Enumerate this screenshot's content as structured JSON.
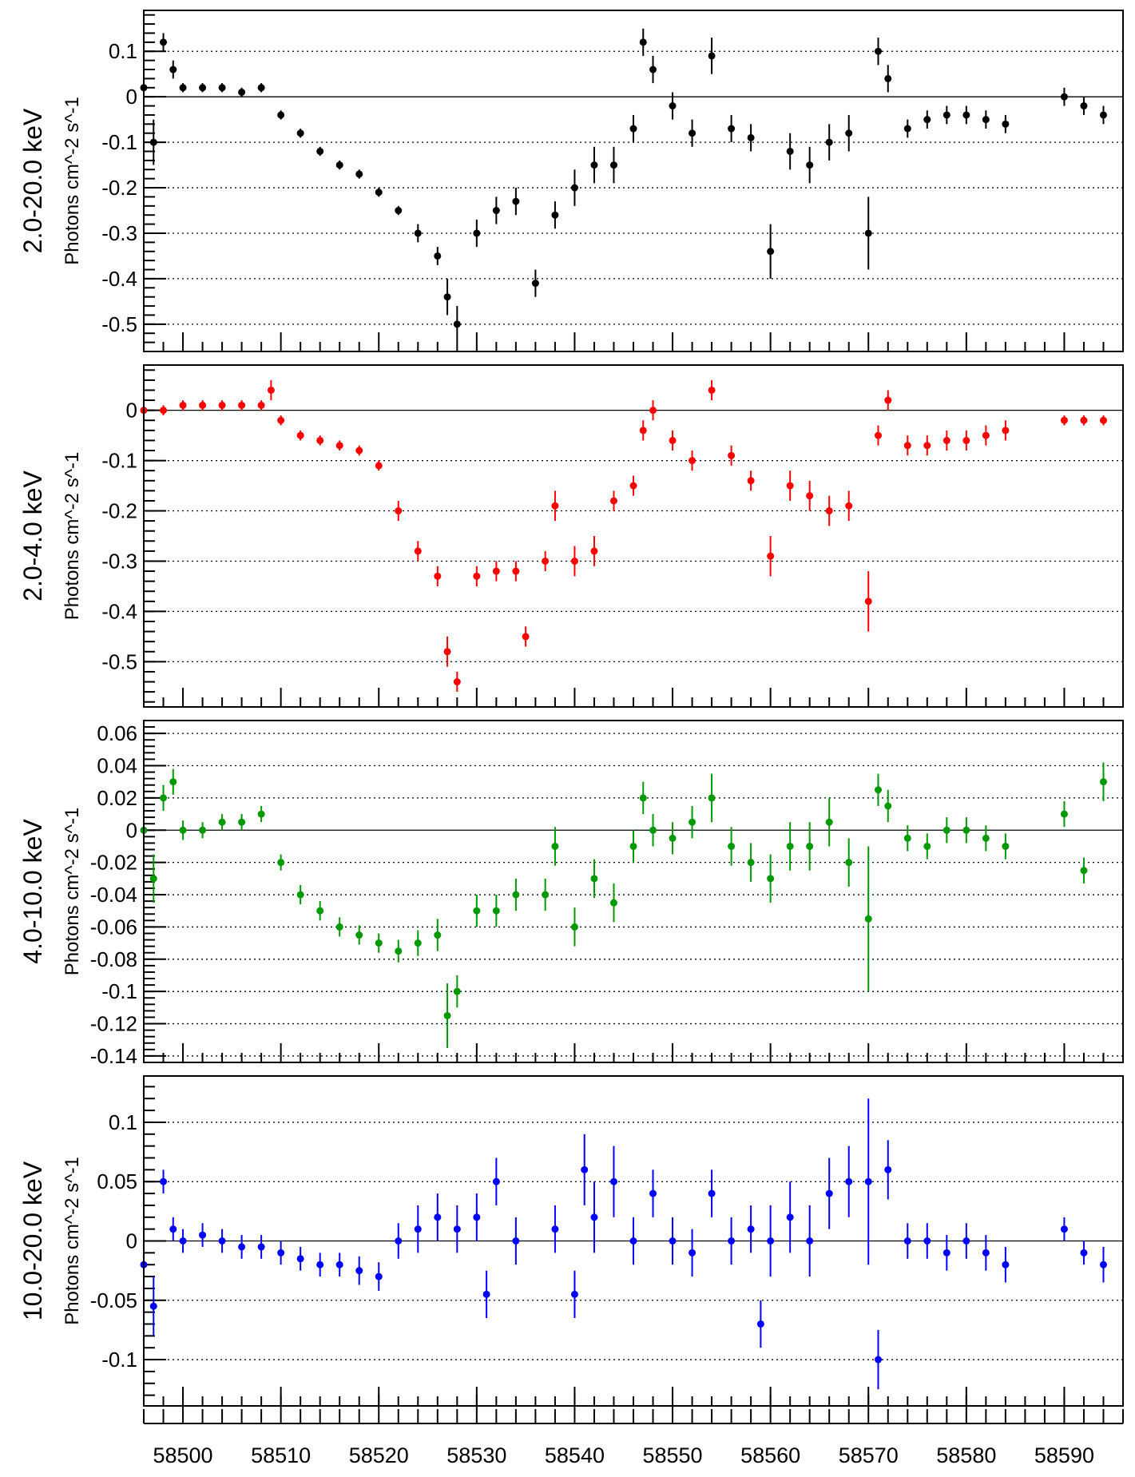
{
  "chart_data": [
    {
      "type": "scatter",
      "band_label": "2.0-20.0 keV",
      "ylabel": "Photons cm^-2 s^-1",
      "ylim": [
        -0.56,
        0.19
      ],
      "yticks": [
        0.1,
        0,
        -0.1,
        -0.2,
        -0.3,
        -0.4,
        -0.5
      ],
      "ytick_labels": [
        "0.1",
        "0",
        "-0.1",
        "-0.2",
        "-0.3",
        "-0.4",
        "-0.5"
      ],
      "color": "#000000",
      "grid": true,
      "x": [
        58496,
        58497,
        58498,
        58499,
        58500,
        58502,
        58504,
        58506,
        58508,
        58510,
        58512,
        58514,
        58516,
        58518,
        58520,
        58522,
        58524,
        58526,
        58527,
        58528,
        58530,
        58532,
        58534,
        58536,
        58538,
        58540,
        58542,
        58544,
        58546,
        58547,
        58548,
        58550,
        58552,
        58554,
        58556,
        58558,
        58560,
        58562,
        58564,
        58566,
        58568,
        58570,
        58571,
        58572,
        58574,
        58576,
        58578,
        58580,
        58582,
        58584,
        58590,
        58592,
        58594
      ],
      "y": [
        0.02,
        -0.1,
        0.12,
        0.06,
        0.02,
        0.02,
        0.02,
        0.01,
        0.02,
        -0.04,
        -0.08,
        -0.12,
        -0.15,
        -0.17,
        -0.21,
        -0.25,
        -0.3,
        -0.35,
        -0.44,
        -0.5,
        -0.3,
        -0.25,
        -0.23,
        -0.41,
        -0.26,
        -0.2,
        -0.15,
        -0.15,
        -0.07,
        0.12,
        0.06,
        -0.02,
        -0.08,
        0.09,
        -0.07,
        -0.09,
        -0.34,
        -0.12,
        -0.15,
        -0.1,
        -0.08,
        -0.3,
        0.1,
        0.04,
        -0.07,
        -0.05,
        -0.04,
        -0.04,
        -0.05,
        -0.06,
        0.0,
        -0.02,
        -0.04
      ],
      "yerr": [
        0.05,
        0.05,
        0.02,
        0.02,
        0.01,
        0.01,
        0.01,
        0.01,
        0.01,
        0.01,
        0.01,
        0.01,
        0.01,
        0.01,
        0.01,
        0.01,
        0.02,
        0.02,
        0.04,
        0.04,
        0.03,
        0.03,
        0.03,
        0.03,
        0.03,
        0.04,
        0.04,
        0.04,
        0.03,
        0.03,
        0.03,
        0.03,
        0.03,
        0.04,
        0.03,
        0.03,
        0.06,
        0.04,
        0.04,
        0.04,
        0.04,
        0.08,
        0.03,
        0.03,
        0.02,
        0.02,
        0.02,
        0.02,
        0.02,
        0.02,
        0.02,
        0.02,
        0.02
      ]
    },
    {
      "type": "scatter",
      "band_label": "2.0-4.0 keV",
      "ylabel": "Photons cm^-2 s^-1",
      "ylim": [
        -0.59,
        0.09
      ],
      "yticks": [
        0,
        -0.1,
        -0.2,
        -0.3,
        -0.4,
        -0.5
      ],
      "ytick_labels": [
        "0",
        "-0.1",
        "-0.2",
        "-0.3",
        "-0.4",
        "-0.5"
      ],
      "color": "#ff0000",
      "grid": true,
      "x": [
        58496,
        58498,
        58500,
        58502,
        58504,
        58506,
        58508,
        58509,
        58510,
        58512,
        58514,
        58516,
        58518,
        58520,
        58522,
        58524,
        58526,
        58527,
        58528,
        58530,
        58532,
        58534,
        58535,
        58537,
        58538,
        58540,
        58542,
        58544,
        58546,
        58547,
        58548,
        58550,
        58552,
        58554,
        58556,
        58558,
        58560,
        58562,
        58564,
        58566,
        58568,
        58570,
        58571,
        58572,
        58574,
        58576,
        58578,
        58580,
        58582,
        58584,
        58590,
        58592,
        58594
      ],
      "y": [
        0.0,
        0.0,
        0.01,
        0.01,
        0.01,
        0.01,
        0.01,
        0.04,
        -0.02,
        -0.05,
        -0.06,
        -0.07,
        -0.08,
        -0.11,
        -0.2,
        -0.28,
        -0.33,
        -0.48,
        -0.54,
        -0.33,
        -0.32,
        -0.32,
        -0.45,
        -0.3,
        -0.19,
        -0.3,
        -0.28,
        -0.18,
        -0.15,
        -0.04,
        0.0,
        -0.06,
        -0.1,
        0.04,
        -0.09,
        -0.14,
        -0.29,
        -0.15,
        -0.17,
        -0.2,
        -0.19,
        -0.38,
        -0.05,
        0.02,
        -0.07,
        -0.07,
        -0.06,
        -0.06,
        -0.05,
        -0.04,
        -0.02,
        -0.02,
        -0.02
      ],
      "yerr": [
        0.02,
        0.01,
        0.01,
        0.01,
        0.01,
        0.01,
        0.01,
        0.02,
        0.01,
        0.01,
        0.01,
        0.01,
        0.01,
        0.01,
        0.02,
        0.02,
        0.02,
        0.03,
        0.02,
        0.02,
        0.02,
        0.02,
        0.02,
        0.02,
        0.03,
        0.03,
        0.03,
        0.02,
        0.02,
        0.02,
        0.02,
        0.02,
        0.02,
        0.02,
        0.02,
        0.02,
        0.04,
        0.03,
        0.03,
        0.03,
        0.03,
        0.06,
        0.02,
        0.02,
        0.02,
        0.02,
        0.02,
        0.02,
        0.02,
        0.02,
        0.01,
        0.01,
        0.01
      ]
    },
    {
      "type": "scatter",
      "band_label": "4.0-10.0 keV",
      "ylabel": "Photons cm^-2 s^-1",
      "ylim": [
        -0.144,
        0.068
      ],
      "yticks": [
        0.06,
        0.04,
        0.02,
        0,
        -0.02,
        -0.04,
        -0.06,
        -0.08,
        -0.1,
        -0.12,
        -0.14
      ],
      "ytick_labels": [
        "0.06",
        "0.04",
        "0.02",
        "0",
        "-0.02",
        "-0.04",
        "-0.06",
        "-0.08",
        "-0.1",
        "-0.12",
        "-0.14"
      ],
      "color": "#009900",
      "grid": true,
      "x": [
        58496,
        58497,
        58498,
        58499,
        58500,
        58502,
        58504,
        58506,
        58508,
        58510,
        58512,
        58514,
        58516,
        58518,
        58520,
        58522,
        58524,
        58526,
        58527,
        58528,
        58530,
        58532,
        58534,
        58537,
        58538,
        58540,
        58542,
        58544,
        58546,
        58547,
        58548,
        58550,
        58552,
        58554,
        58556,
        58558,
        58560,
        58562,
        58564,
        58566,
        58568,
        58570,
        58571,
        58572,
        58574,
        58576,
        58578,
        58580,
        58582,
        58584,
        58590,
        58592,
        58594
      ],
      "y": [
        0.0,
        -0.03,
        0.02,
        0.03,
        0.0,
        0.0,
        0.005,
        0.005,
        0.01,
        -0.02,
        -0.04,
        -0.05,
        -0.06,
        -0.065,
        -0.07,
        -0.075,
        -0.07,
        -0.065,
        -0.115,
        -0.1,
        -0.05,
        -0.05,
        -0.04,
        -0.04,
        -0.01,
        -0.06,
        -0.03,
        -0.045,
        -0.01,
        0.02,
        0.0,
        -0.005,
        0.005,
        0.02,
        -0.01,
        -0.02,
        -0.03,
        -0.01,
        -0.01,
        0.005,
        -0.02,
        -0.055,
        0.025,
        0.015,
        -0.005,
        -0.01,
        0.0,
        0.0,
        -0.005,
        -0.01,
        0.01,
        -0.025,
        0.03
      ],
      "yerr": [
        0.015,
        0.015,
        0.008,
        0.008,
        0.006,
        0.005,
        0.005,
        0.005,
        0.005,
        0.005,
        0.006,
        0.006,
        0.006,
        0.006,
        0.006,
        0.007,
        0.008,
        0.01,
        0.02,
        0.01,
        0.01,
        0.01,
        0.01,
        0.01,
        0.012,
        0.012,
        0.012,
        0.012,
        0.01,
        0.01,
        0.01,
        0.01,
        0.01,
        0.015,
        0.012,
        0.012,
        0.015,
        0.015,
        0.015,
        0.015,
        0.015,
        0.045,
        0.01,
        0.01,
        0.008,
        0.008,
        0.008,
        0.008,
        0.008,
        0.008,
        0.008,
        0.008,
        0.012
      ]
    },
    {
      "type": "scatter",
      "band_label": "10.0-20.0 keV",
      "ylabel": "Photons cm^-2 s^-1",
      "ylim": [
        -0.139,
        0.139
      ],
      "yticks": [
        0.1,
        0.05,
        0,
        -0.05,
        -0.1
      ],
      "ytick_labels": [
        "0.1",
        "0.05",
        "0",
        "-0.05",
        "-0.1"
      ],
      "color": "#0000ff",
      "grid": true,
      "x": [
        58496,
        58497,
        58498,
        58499,
        58500,
        58502,
        58504,
        58506,
        58508,
        58510,
        58512,
        58514,
        58516,
        58518,
        58520,
        58522,
        58524,
        58526,
        58528,
        58530,
        58531,
        58532,
        58534,
        58538,
        58540,
        58541,
        58542,
        58544,
        58546,
        58548,
        58550,
        58552,
        58554,
        58556,
        58558,
        58559,
        58560,
        58562,
        58564,
        58566,
        58568,
        58570,
        58571,
        58572,
        58574,
        58576,
        58578,
        58580,
        58582,
        58584,
        58590,
        58592,
        58594
      ],
      "y": [
        -0.02,
        -0.055,
        0.05,
        0.01,
        0.0,
        0.005,
        0.0,
        -0.005,
        -0.005,
        -0.01,
        -0.015,
        -0.02,
        -0.02,
        -0.025,
        -0.03,
        0.0,
        0.01,
        0.02,
        0.01,
        0.02,
        -0.045,
        0.05,
        0.0,
        0.01,
        -0.045,
        0.06,
        0.02,
        0.05,
        0.0,
        0.04,
        0.0,
        -0.01,
        0.04,
        0.0,
        0.01,
        -0.07,
        0.0,
        0.02,
        0.0,
        0.04,
        0.05,
        0.05,
        -0.1,
        0.06,
        0.0,
        0.0,
        -0.01,
        0.0,
        -0.01,
        -0.02,
        0.01,
        -0.01,
        -0.02
      ],
      "yerr": [
        0.025,
        0.025,
        0.01,
        0.01,
        0.01,
        0.01,
        0.01,
        0.01,
        0.01,
        0.01,
        0.01,
        0.01,
        0.01,
        0.012,
        0.012,
        0.015,
        0.02,
        0.02,
        0.02,
        0.02,
        0.02,
        0.02,
        0.02,
        0.02,
        0.02,
        0.03,
        0.03,
        0.03,
        0.02,
        0.02,
        0.02,
        0.02,
        0.02,
        0.02,
        0.02,
        0.02,
        0.03,
        0.03,
        0.03,
        0.03,
        0.03,
        0.07,
        0.025,
        0.025,
        0.015,
        0.015,
        0.015,
        0.015,
        0.015,
        0.015,
        0.01,
        0.01,
        0.015
      ]
    }
  ],
  "shared_x": {
    "xlim": [
      58496,
      58596
    ],
    "xticks": [
      58500,
      58510,
      58520,
      58530,
      58540,
      58550,
      58560,
      58570,
      58580,
      58590
    ],
    "xtick_labels": [
      "58500",
      "58510",
      "58520",
      "58530",
      "58540",
      "58550",
      "58560",
      "58570",
      "58580",
      "58590"
    ]
  }
}
